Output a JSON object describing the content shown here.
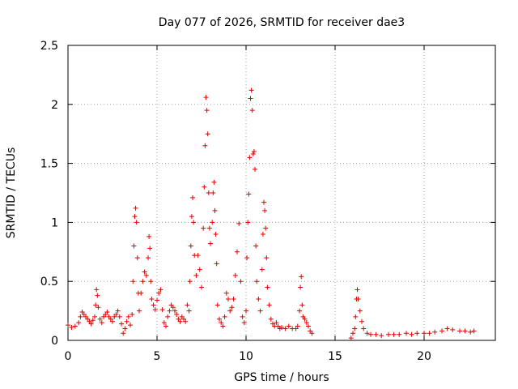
{
  "chart_data": {
    "type": "scatter",
    "title": "Day 077 of 2026, SRMTID for receiver dae3",
    "xlabel": "GPS time / hours",
    "ylabel": "SRMTID / TECUs",
    "xlim": [
      0,
      24
    ],
    "ylim": [
      0,
      2.5
    ],
    "xticks": [
      0,
      5,
      10,
      15,
      20
    ],
    "xtick_labels": [
      "0",
      "5",
      "10",
      "15",
      "20"
    ],
    "yticks": [
      0,
      0.5,
      1,
      1.5,
      2,
      2.5
    ],
    "ytick_labels": [
      "0",
      "0.5",
      "1",
      "1.5",
      "2",
      "2.5"
    ],
    "grid": true,
    "marker": "+",
    "marker_color": "#e00000",
    "series": [
      {
        "name": "SRMTID",
        "points": [
          [
            0.0,
            0.13
          ],
          [
            0.2,
            0.11
          ],
          [
            0.4,
            0.12
          ],
          [
            0.6,
            0.15
          ],
          [
            0.7,
            0.2
          ],
          [
            0.8,
            0.24
          ],
          [
            0.9,
            0.22
          ],
          [
            1.0,
            0.2
          ],
          [
            1.1,
            0.18
          ],
          [
            1.2,
            0.16
          ],
          [
            1.3,
            0.14
          ],
          [
            1.4,
            0.17
          ],
          [
            1.5,
            0.2
          ],
          [
            1.55,
            0.3
          ],
          [
            1.6,
            0.43
          ],
          [
            1.65,
            0.38
          ],
          [
            1.7,
            0.28
          ],
          [
            1.8,
            0.18
          ],
          [
            1.9,
            0.15
          ],
          [
            2.0,
            0.2
          ],
          [
            2.1,
            0.22
          ],
          [
            2.2,
            0.24
          ],
          [
            2.3,
            0.2
          ],
          [
            2.4,
            0.18
          ],
          [
            2.5,
            0.16
          ],
          [
            2.6,
            0.2
          ],
          [
            2.7,
            0.22
          ],
          [
            2.8,
            0.25
          ],
          [
            2.9,
            0.2
          ],
          [
            3.0,
            0.14
          ],
          [
            3.1,
            0.06
          ],
          [
            3.2,
            0.1
          ],
          [
            3.3,
            0.16
          ],
          [
            3.4,
            0.2
          ],
          [
            3.5,
            0.13
          ],
          [
            3.6,
            0.22
          ],
          [
            3.65,
            0.5
          ],
          [
            3.7,
            0.8
          ],
          [
            3.75,
            1.05
          ],
          [
            3.8,
            1.12
          ],
          [
            3.85,
            1.0
          ],
          [
            3.9,
            0.7
          ],
          [
            3.95,
            0.4
          ],
          [
            4.0,
            0.25
          ],
          [
            4.1,
            0.4
          ],
          [
            4.2,
            0.5
          ],
          [
            4.3,
            0.58
          ],
          [
            4.4,
            0.55
          ],
          [
            4.5,
            0.7
          ],
          [
            4.55,
            0.88
          ],
          [
            4.6,
            0.78
          ],
          [
            4.65,
            0.5
          ],
          [
            4.7,
            0.35
          ],
          [
            4.8,
            0.3
          ],
          [
            4.9,
            0.26
          ],
          [
            5.0,
            0.34
          ],
          [
            5.1,
            0.4
          ],
          [
            5.2,
            0.43
          ],
          [
            5.3,
            0.26
          ],
          [
            5.4,
            0.15
          ],
          [
            5.5,
            0.12
          ],
          [
            5.6,
            0.2
          ],
          [
            5.7,
            0.25
          ],
          [
            5.8,
            0.3
          ],
          [
            5.9,
            0.28
          ],
          [
            6.0,
            0.25
          ],
          [
            6.1,
            0.22
          ],
          [
            6.2,
            0.18
          ],
          [
            6.3,
            0.16
          ],
          [
            6.4,
            0.2
          ],
          [
            6.5,
            0.18
          ],
          [
            6.6,
            0.16
          ],
          [
            6.7,
            0.3
          ],
          [
            6.8,
            0.25
          ],
          [
            6.85,
            0.5
          ],
          [
            6.9,
            0.8
          ],
          [
            6.95,
            1.05
          ],
          [
            7.0,
            1.21
          ],
          [
            7.05,
            1.0
          ],
          [
            7.1,
            0.72
          ],
          [
            7.2,
            0.55
          ],
          [
            7.3,
            0.72
          ],
          [
            7.4,
            0.6
          ],
          [
            7.5,
            0.45
          ],
          [
            7.6,
            0.95
          ],
          [
            7.65,
            1.3
          ],
          [
            7.7,
            1.65
          ],
          [
            7.75,
            2.06
          ],
          [
            7.8,
            1.95
          ],
          [
            7.85,
            1.75
          ],
          [
            7.9,
            1.25
          ],
          [
            7.95,
            0.95
          ],
          [
            8.0,
            0.82
          ],
          [
            8.1,
            1.0
          ],
          [
            8.15,
            1.25
          ],
          [
            8.2,
            1.34
          ],
          [
            8.25,
            1.1
          ],
          [
            8.3,
            0.9
          ],
          [
            8.35,
            0.65
          ],
          [
            8.4,
            0.3
          ],
          [
            8.5,
            0.18
          ],
          [
            8.6,
            0.15
          ],
          [
            8.7,
            0.12
          ],
          [
            8.8,
            0.2
          ],
          [
            8.9,
            0.4
          ],
          [
            9.0,
            0.35
          ],
          [
            9.1,
            0.25
          ],
          [
            9.2,
            0.28
          ],
          [
            9.3,
            0.35
          ],
          [
            9.4,
            0.55
          ],
          [
            9.5,
            0.75
          ],
          [
            9.6,
            0.99
          ],
          [
            9.7,
            0.5
          ],
          [
            9.8,
            0.2
          ],
          [
            9.9,
            0.15
          ],
          [
            10.0,
            0.25
          ],
          [
            10.05,
            0.7
          ],
          [
            10.1,
            1.0
          ],
          [
            10.15,
            1.24
          ],
          [
            10.2,
            1.55
          ],
          [
            10.25,
            2.05
          ],
          [
            10.3,
            2.12
          ],
          [
            10.35,
            1.95
          ],
          [
            10.4,
            1.58
          ],
          [
            10.45,
            1.6
          ],
          [
            10.5,
            1.45
          ],
          [
            10.55,
            0.8
          ],
          [
            10.6,
            0.5
          ],
          [
            10.7,
            0.35
          ],
          [
            10.8,
            0.25
          ],
          [
            10.9,
            0.6
          ],
          [
            10.95,
            0.9
          ],
          [
            11.0,
            1.17
          ],
          [
            11.05,
            1.1
          ],
          [
            11.1,
            0.95
          ],
          [
            11.15,
            0.7
          ],
          [
            11.2,
            0.45
          ],
          [
            11.3,
            0.3
          ],
          [
            11.4,
            0.18
          ],
          [
            11.5,
            0.14
          ],
          [
            11.6,
            0.12
          ],
          [
            11.7,
            0.15
          ],
          [
            11.8,
            0.12
          ],
          [
            11.9,
            0.1
          ],
          [
            12.0,
            0.11
          ],
          [
            12.2,
            0.1
          ],
          [
            12.4,
            0.12
          ],
          [
            12.6,
            0.1
          ],
          [
            12.8,
            0.1
          ],
          [
            12.9,
            0.12
          ],
          [
            13.0,
            0.25
          ],
          [
            13.05,
            0.45
          ],
          [
            13.1,
            0.54
          ],
          [
            13.15,
            0.3
          ],
          [
            13.2,
            0.2
          ],
          [
            13.3,
            0.18
          ],
          [
            13.4,
            0.15
          ],
          [
            13.5,
            0.12
          ],
          [
            13.6,
            0.08
          ],
          [
            13.7,
            0.06
          ],
          [
            15.9,
            0.02
          ],
          [
            16.0,
            0.06
          ],
          [
            16.1,
            0.1
          ],
          [
            16.15,
            0.2
          ],
          [
            16.2,
            0.35
          ],
          [
            16.25,
            0.43
          ],
          [
            16.3,
            0.35
          ],
          [
            16.4,
            0.25
          ],
          [
            16.5,
            0.16
          ],
          [
            16.6,
            0.1
          ],
          [
            16.8,
            0.06
          ],
          [
            17.0,
            0.05
          ],
          [
            17.3,
            0.05
          ],
          [
            17.6,
            0.04
          ],
          [
            18.0,
            0.05
          ],
          [
            18.3,
            0.05
          ],
          [
            18.6,
            0.05
          ],
          [
            19.0,
            0.06
          ],
          [
            19.3,
            0.05
          ],
          [
            19.6,
            0.06
          ],
          [
            20.0,
            0.06
          ],
          [
            20.3,
            0.06
          ],
          [
            20.6,
            0.07
          ],
          [
            21.0,
            0.08
          ],
          [
            21.3,
            0.1
          ],
          [
            21.6,
            0.09
          ],
          [
            22.0,
            0.08
          ],
          [
            22.3,
            0.08
          ],
          [
            22.6,
            0.07
          ],
          [
            22.8,
            0.08
          ]
        ]
      }
    ]
  }
}
